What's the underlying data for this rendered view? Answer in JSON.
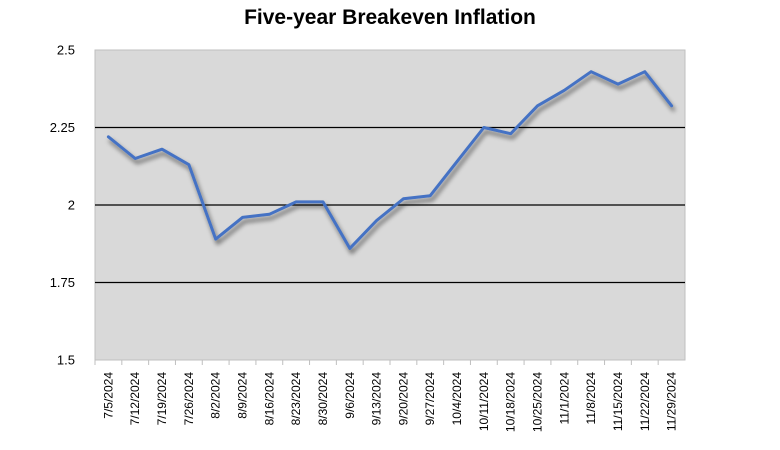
{
  "chart_data": {
    "type": "line",
    "title": "Five-year Breakeven Inflation",
    "xlabel": "",
    "ylabel": "",
    "ylim": [
      1.5,
      2.5
    ],
    "yticks": [
      "1.5",
      "1.75",
      "2",
      "2.25",
      "2.5"
    ],
    "grid": "horizontal",
    "legend": "none",
    "categories": [
      "7/5/2024",
      "7/12/2024",
      "7/19/2024",
      "7/26/2024",
      "8/2/2024",
      "8/9/2024",
      "8/16/2024",
      "8/23/2024",
      "8/30/2024",
      "9/6/2024",
      "9/13/2024",
      "9/20/2024",
      "9/27/2024",
      "10/4/2024",
      "10/11/2024",
      "10/18/2024",
      "10/25/2024",
      "11/1/2024",
      "11/8/2024",
      "11/15/2024",
      "11/22/2024",
      "11/29/2024"
    ],
    "series": [
      {
        "values": [
          2.22,
          2.15,
          2.18,
          2.13,
          1.89,
          1.96,
          1.97,
          2.01,
          2.01,
          1.86,
          1.95,
          2.02,
          2.03,
          2.14,
          2.25,
          2.23,
          2.32,
          2.37,
          2.43,
          2.39,
          2.43,
          2.32
        ]
      }
    ],
    "colors": {
      "plot_background": "#d9d9d9",
      "line": "#4472c4",
      "gridline": "#000000",
      "axis": "#bfbfbf"
    }
  }
}
